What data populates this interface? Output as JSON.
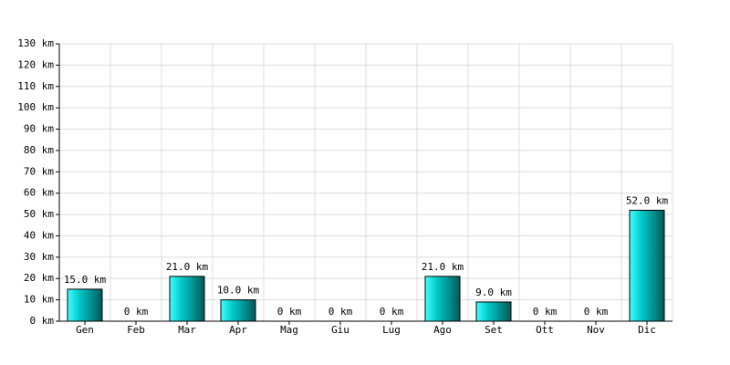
{
  "chart_data": {
    "type": "bar",
    "categories": [
      "Gen",
      "Feb",
      "Mar",
      "Apr",
      "Mag",
      "Giu",
      "Lug",
      "Ago",
      "Set",
      "Ott",
      "Nov",
      "Dic"
    ],
    "values": [
      15,
      0,
      21,
      10,
      0,
      0,
      0,
      21,
      9,
      0,
      0,
      52
    ],
    "value_labels": [
      "15.0 km",
      "0 km",
      "21.0 km",
      "10.0 km",
      "0 km",
      "0 km",
      "0 km",
      "21.0 km",
      "9.0 km",
      "0 km",
      "0 km",
      "52.0 km"
    ],
    "color": "#00c8c8",
    "ylim": [
      0,
      130
    ],
    "yticks": [
      {
        "value": 0,
        "label": "0 km"
      },
      {
        "value": 10,
        "label": "10 km"
      },
      {
        "value": 20,
        "label": "20 km"
      },
      {
        "value": 30,
        "label": "30 km"
      },
      {
        "value": 40,
        "label": "40 km"
      },
      {
        "value": 50,
        "label": "50 km"
      },
      {
        "value": 60,
        "label": "60 km"
      },
      {
        "value": 70,
        "label": "70 km"
      },
      {
        "value": 80,
        "label": "80 km"
      },
      {
        "value": 90,
        "label": "90 km"
      },
      {
        "value": 100,
        "label": "100 km"
      },
      {
        "value": 110,
        "label": "110 km"
      },
      {
        "value": 120,
        "label": "120 km"
      },
      {
        "value": 130,
        "label": "130 km"
      }
    ],
    "grid": true
  }
}
